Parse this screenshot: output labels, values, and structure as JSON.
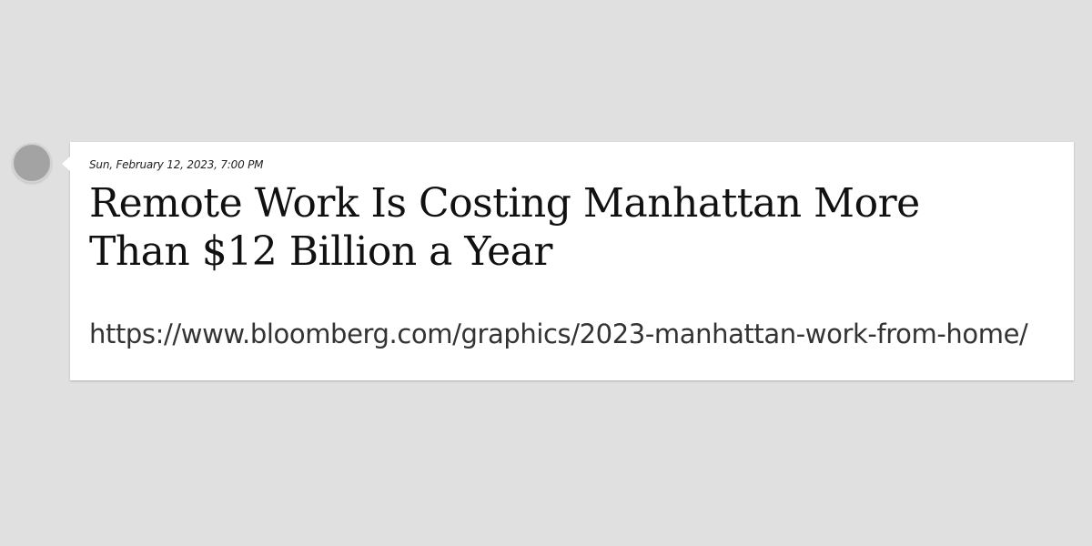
{
  "post": {
    "timestamp": "Sun, February 12, 2023, 7:00 PM",
    "headline": "Remote Work Is Costing Manhattan More Than $12 Billion a Year",
    "url": "https://www.bloomberg.com/graphics/2023-manhattan-work-from-home/"
  },
  "colors": {
    "background": "#e0e0e0",
    "card": "#ffffff",
    "avatar": "#a3a3a3"
  }
}
